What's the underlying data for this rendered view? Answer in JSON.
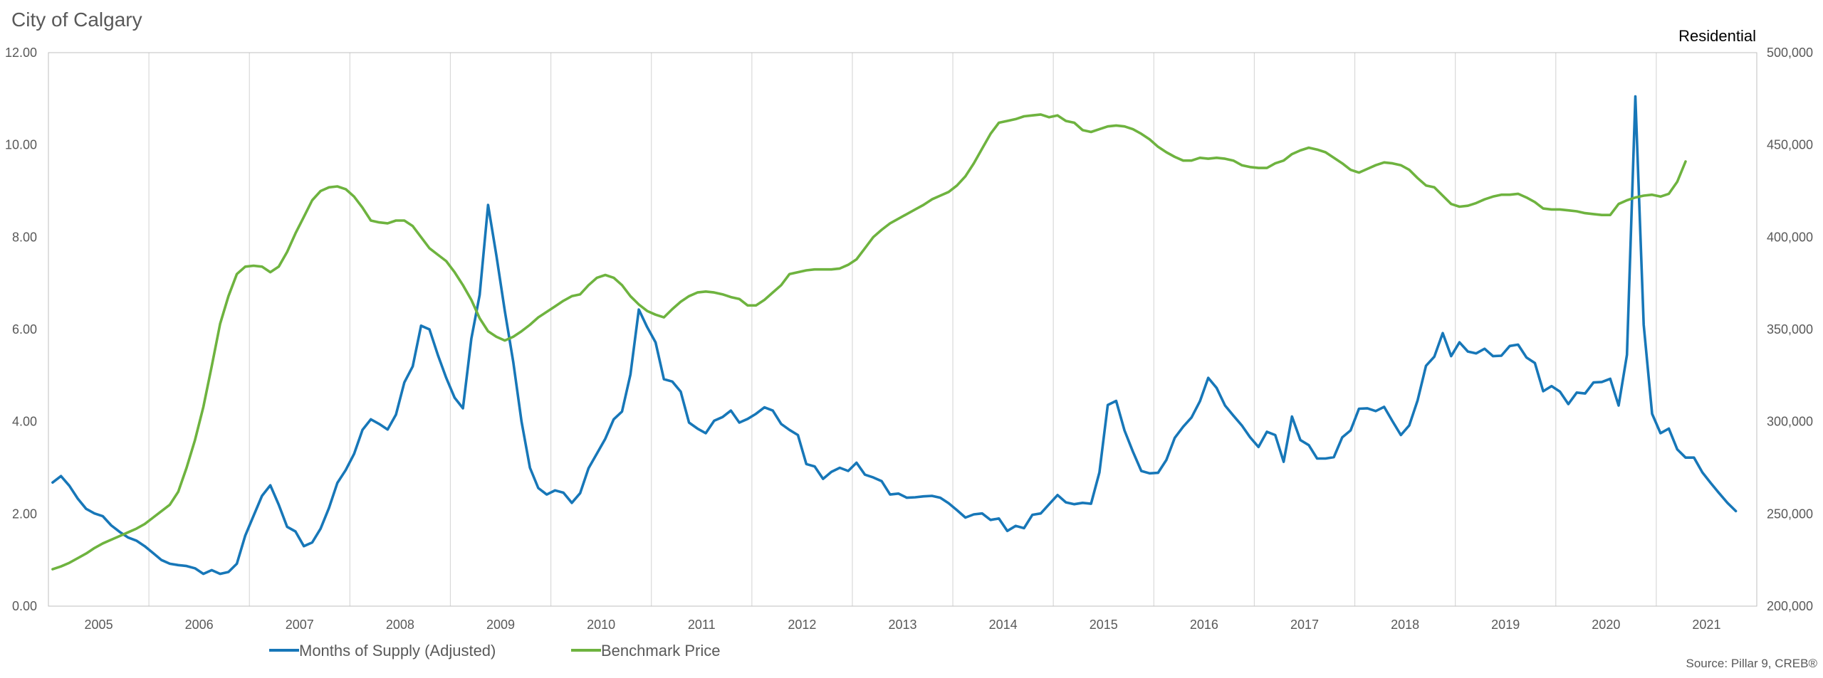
{
  "chart_data": {
    "type": "line",
    "title": "City of Calgary",
    "subtitle": "Residential",
    "source": "Source: Pillar 9, CREB®",
    "x_ticks": [
      "2005",
      "2006",
      "2007",
      "2008",
      "2009",
      "2010",
      "2011",
      "2012",
      "2013",
      "2014",
      "2015",
      "2016",
      "2017",
      "2018",
      "2019",
      "2020",
      "2021"
    ],
    "y_left": {
      "lim": [
        0,
        12
      ],
      "ticks": [
        "0.00",
        "2.00",
        "4.00",
        "6.00",
        "8.00",
        "10.00",
        "12.00"
      ]
    },
    "y_right": {
      "lim": [
        200000,
        500000
      ],
      "ticks": [
        "200,000",
        "250,000",
        "300,000",
        "350,000",
        "400,000",
        "450,000",
        "500,000"
      ]
    },
    "grid": "vertical",
    "legend_position": "bottom",
    "series": [
      {
        "name": "Months of Supply (Adjusted)",
        "color": "#1777b8",
        "axis": "left",
        "start": "2004-12",
        "values": [
          2.68,
          2.82,
          2.61,
          2.33,
          2.11,
          2.01,
          1.95,
          1.75,
          1.61,
          1.49,
          1.42,
          1.3,
          1.15,
          1.0,
          0.92,
          0.89,
          0.87,
          0.82,
          0.7,
          0.78,
          0.7,
          0.74,
          0.92,
          1.53,
          1.96,
          2.39,
          2.62,
          2.2,
          1.72,
          1.62,
          1.3,
          1.38,
          1.68,
          2.13,
          2.67,
          2.95,
          3.3,
          3.82,
          4.05,
          3.95,
          3.83,
          4.15,
          4.85,
          5.2,
          6.08,
          6.0,
          5.45,
          4.95,
          4.52,
          4.29,
          5.8,
          6.75,
          8.7,
          7.6,
          6.4,
          5.3,
          4.0,
          3.0,
          2.56,
          2.42,
          2.51,
          2.46,
          2.24,
          2.45,
          2.99,
          3.31,
          3.63,
          4.05,
          4.22,
          5.02,
          6.43,
          6.05,
          5.72,
          4.92,
          4.87,
          4.65,
          3.98,
          3.85,
          3.75,
          4.02,
          4.1,
          4.24,
          3.98,
          4.06,
          4.17,
          4.31,
          4.24,
          3.95,
          3.82,
          3.71,
          3.08,
          3.03,
          2.76,
          2.91,
          3.0,
          2.93,
          3.11,
          2.85,
          2.79,
          2.71,
          2.42,
          2.44,
          2.35,
          2.36,
          2.38,
          2.39,
          2.35,
          2.23,
          2.08,
          1.92,
          1.99,
          2.01,
          1.87,
          1.9,
          1.63,
          1.74,
          1.69,
          1.98,
          2.01,
          2.21,
          2.41,
          2.25,
          2.21,
          2.24,
          2.22,
          2.9,
          4.36,
          4.45,
          3.81,
          3.35,
          2.93,
          2.88,
          2.89,
          3.17,
          3.65,
          3.89,
          4.09,
          4.44,
          4.95,
          4.73,
          4.35,
          4.13,
          3.92,
          3.66,
          3.45,
          3.78,
          3.71,
          3.13,
          4.11,
          3.6,
          3.49,
          3.2,
          3.2,
          3.23,
          3.66,
          3.81,
          4.28,
          4.29,
          4.23,
          4.32,
          4.01,
          3.71,
          3.92,
          4.46,
          5.21,
          5.41,
          5.92,
          5.42,
          5.72,
          5.52,
          5.48,
          5.58,
          5.42,
          5.43,
          5.64,
          5.67,
          5.39,
          5.27,
          4.66,
          4.77,
          4.65,
          4.38,
          4.63,
          4.61,
          4.85,
          4.86,
          4.93,
          4.35,
          5.45,
          11.05,
          6.1,
          4.17,
          3.75,
          3.85,
          3.4,
          3.22,
          3.22,
          2.9,
          2.67,
          2.45,
          2.24,
          2.06
        ]
      },
      {
        "name": "Benchmark Price",
        "color": "#6eb33f",
        "axis": "right",
        "start": "2004-12",
        "values": [
          220000,
          221500,
          223500,
          226000,
          228500,
          231500,
          234000,
          236000,
          238000,
          240000,
          242000,
          244500,
          248000,
          251500,
          255000,
          262000,
          275000,
          290000,
          308000,
          330000,
          353000,
          368000,
          380000,
          384000,
          384500,
          384000,
          381000,
          384000,
          392000,
          402000,
          411000,
          420000,
          425000,
          427000,
          427500,
          426000,
          422000,
          416000,
          409000,
          408000,
          407500,
          409000,
          409000,
          406000,
          400000,
          394000,
          390500,
          387000,
          381000,
          374000,
          366000,
          356000,
          349000,
          346000,
          344000,
          346000,
          349000,
          352500,
          356500,
          359500,
          362500,
          365500,
          368000,
          369000,
          374000,
          378000,
          379500,
          378000,
          374000,
          368000,
          363500,
          360000,
          358000,
          356500,
          361000,
          365000,
          368000,
          370000,
          370500,
          370000,
          369000,
          367500,
          366500,
          363000,
          363000,
          366000,
          370000,
          374000,
          380000,
          381000,
          382000,
          382500,
          382500,
          382500,
          383000,
          385000,
          388000,
          394000,
          400000,
          404000,
          407500,
          410000,
          412500,
          415000,
          417500,
          420500,
          422500,
          424500,
          428000,
          433000,
          440000,
          448000,
          456000,
          462000,
          463000,
          464000,
          465500,
          466000,
          466500,
          465000,
          466000,
          463000,
          462000,
          458000,
          457000,
          458500,
          460000,
          460500,
          460000,
          458500,
          456000,
          453000,
          449000,
          446000,
          443500,
          441500,
          441500,
          443000,
          442500,
          443000,
          442500,
          441500,
          439000,
          438000,
          437500,
          437500,
          440000,
          441500,
          445000,
          447000,
          448500,
          447500,
          446000,
          443000,
          440000,
          436500,
          435000,
          437000,
          439000,
          440500,
          440000,
          439000,
          436500,
          432000,
          428000,
          427000,
          422500,
          418000,
          416500,
          417000,
          418500,
          420500,
          422000,
          423000,
          423000,
          423500,
          421500,
          419000,
          415500,
          415000,
          415000,
          414500,
          414000,
          413000,
          412500,
          412000,
          412000,
          418000,
          420000,
          421500,
          422500,
          423000,
          422000,
          423500,
          430000,
          441000
        ]
      }
    ]
  }
}
